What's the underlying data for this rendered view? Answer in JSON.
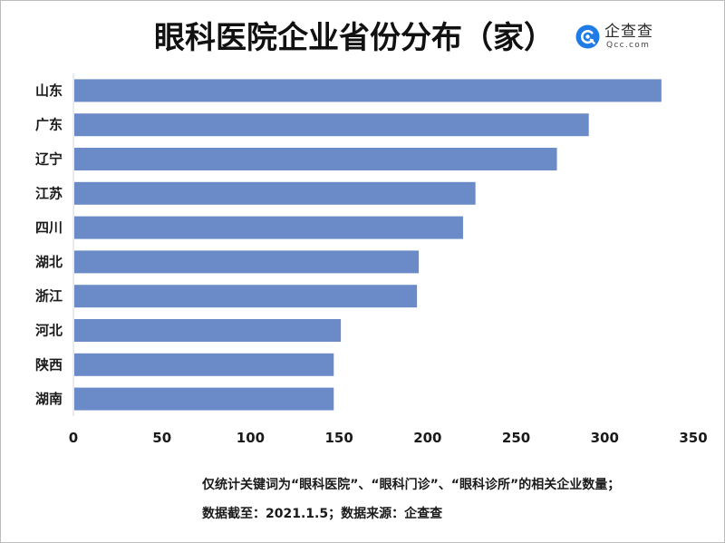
{
  "chart_data": {
    "type": "bar",
    "orientation": "horizontal",
    "title": "眼科医院企业省份分布（家）",
    "categories": [
      "山东",
      "广东",
      "辽宁",
      "江苏",
      "四川",
      "湖北",
      "浙江",
      "河北",
      "陕西",
      "湖南"
    ],
    "values": [
      332,
      291,
      273,
      227,
      220,
      195,
      194,
      151,
      147,
      147
    ],
    "xlim": [
      0,
      350
    ],
    "xticks": [
      0,
      50,
      100,
      150,
      200,
      250,
      300,
      350
    ],
    "grid": false,
    "legend": "none"
  },
  "logo": {
    "icon": "qcc-q-logo-icon",
    "name": "企查查",
    "domain": "Qcc.com"
  },
  "notes": [
    "仅统计关键词为“眼科医院”、“眼科门诊”、“眼科诊所”的相关企业数量；",
    "数据截至：2021.1.5；数据来源：企查查"
  ],
  "colors": {
    "bar": "#6a8bc7",
    "logo": "#1f7be5"
  }
}
